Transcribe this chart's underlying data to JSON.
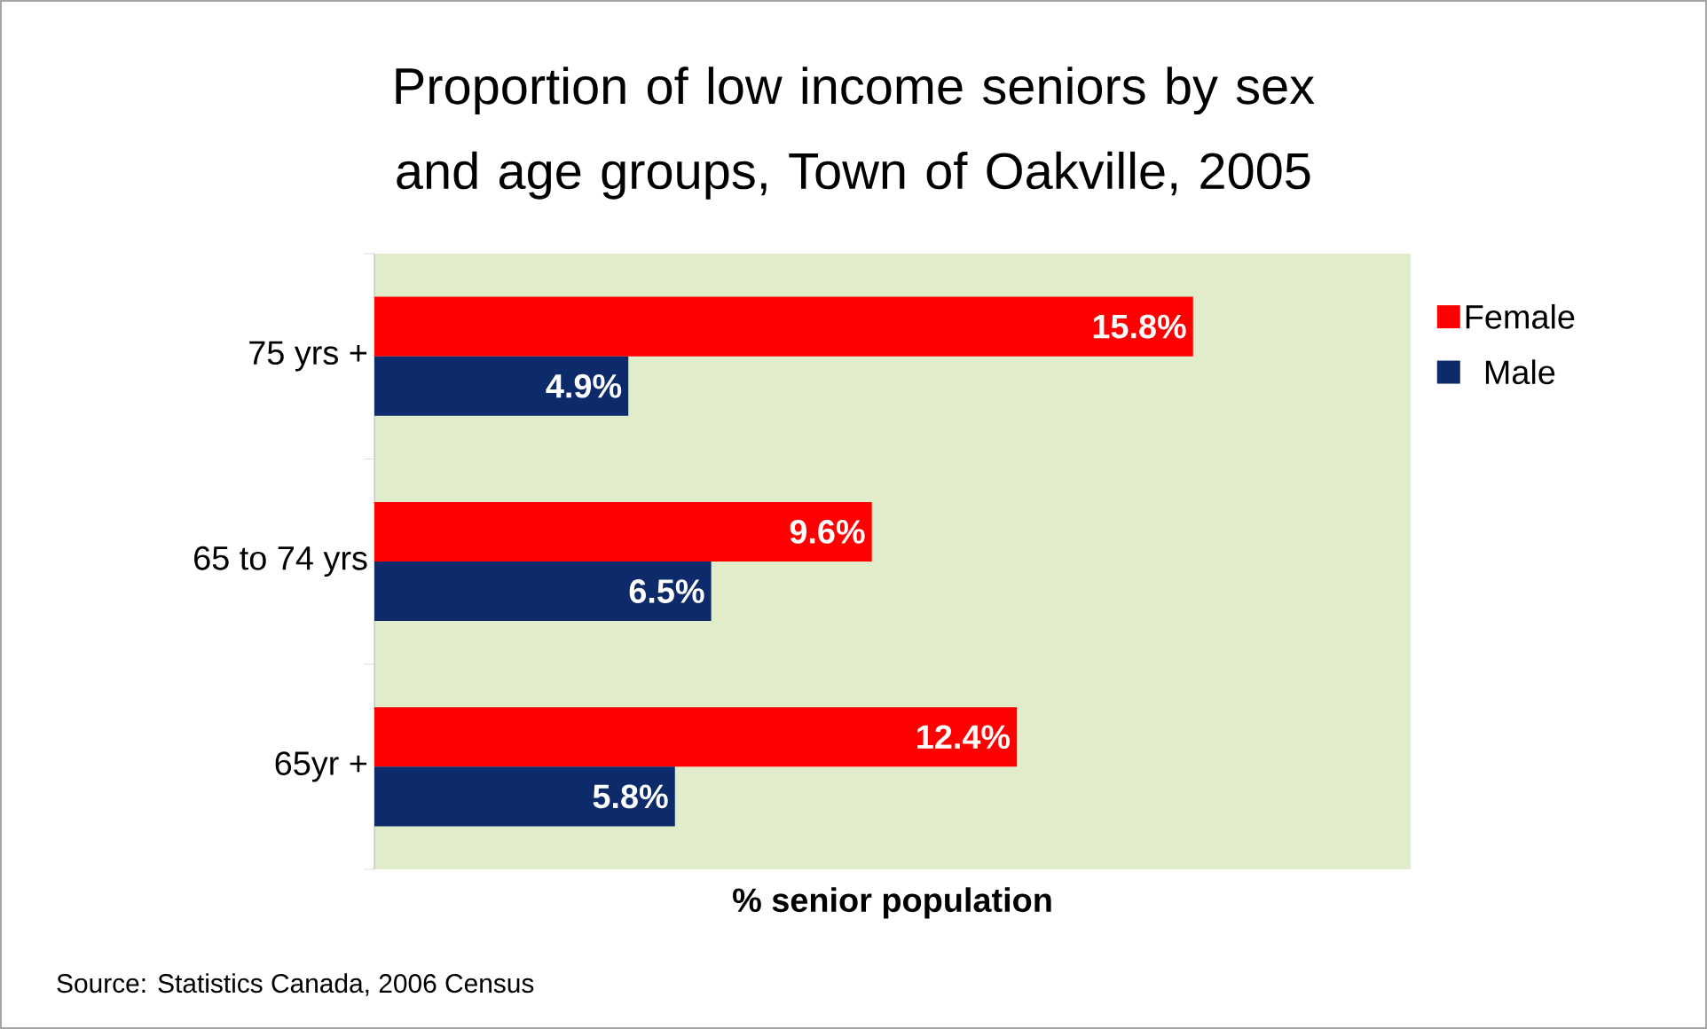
{
  "chart_data": {
    "type": "bar",
    "orientation": "horizontal",
    "title": "Proportion of low income seniors by sex and age groups, Town of Oakville, 2005",
    "categories": [
      "75 yrs +",
      "65 to 74 yrs",
      "65yr +"
    ],
    "series": [
      {
        "name": "Female",
        "color": "#ff0000",
        "values": [
          15.8,
          9.6,
          12.4
        ],
        "value_labels": [
          "15.8%",
          "9.6%",
          "12.4%"
        ]
      },
      {
        "name": "Male",
        "color": "#0d2a6b",
        "values": [
          4.9,
          6.5,
          5.8
        ],
        "value_labels": [
          "4.9%",
          "6.5%",
          "5.8%"
        ]
      }
    ],
    "xlim": [
      0,
      20
    ],
    "xlabel": "% senior population",
    "legend": "right",
    "tick_labels": "y",
    "annotations": [
      "Source: Statistics Canada, 2006 Census"
    ]
  }
}
